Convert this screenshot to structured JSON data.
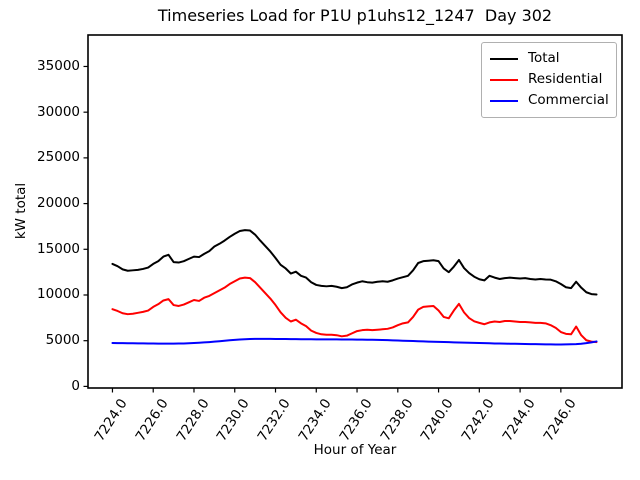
{
  "figure": {
    "background": "#ffffff"
  },
  "chart_data": {
    "type": "line",
    "title": "Timeseries Load for P1U p1uhs12_1247  Day 302",
    "xlabel": "Hour of Year",
    "ylabel": "kW total",
    "grid": false,
    "legend_position": "upper right",
    "xlim": [
      7222.8,
      7249.0
    ],
    "ylim": [
      -175,
      38443
    ],
    "x_tick_values": [
      7224,
      7226,
      7228,
      7230,
      7232,
      7234,
      7236,
      7238,
      7240,
      7242,
      7244,
      7246
    ],
    "x_tick_labels": [
      "7224.0",
      "7226.0",
      "7228.0",
      "7230.0",
      "7232.0",
      "7234.0",
      "7236.0",
      "7238.0",
      "7240.0",
      "7242.0",
      "7244.0",
      "7246.0"
    ],
    "y_tick_values": [
      0,
      5000,
      10000,
      15000,
      20000,
      25000,
      30000,
      35000
    ],
    "y_tick_labels": [
      "0",
      "5000",
      "10000",
      "15000",
      "20000",
      "25000",
      "30000",
      "35000"
    ],
    "x_start": 7224.0,
    "x_step": 0.25,
    "series": [
      {
        "name": "Total",
        "color": "#000000",
        "values": [
          13400,
          13150,
          12800,
          12650,
          12700,
          12750,
          12850,
          13000,
          13400,
          13700,
          14200,
          14400,
          13600,
          13550,
          13700,
          13950,
          14200,
          14150,
          14500,
          14800,
          15300,
          15600,
          15950,
          16350,
          16700,
          17000,
          17100,
          17050,
          16600,
          15950,
          15350,
          14750,
          14050,
          13300,
          12900,
          12350,
          12550,
          12100,
          11900,
          11400,
          11100,
          11000,
          10950,
          11000,
          10900,
          10750,
          10850,
          11150,
          11350,
          11500,
          11400,
          11350,
          11450,
          11500,
          11450,
          11600,
          11800,
          11950,
          12100,
          12700,
          13500,
          13700,
          13750,
          13800,
          13700,
          12900,
          12500,
          13100,
          13830,
          12950,
          12400,
          12000,
          11720,
          11600,
          12100,
          11900,
          11750,
          11850,
          11900,
          11850,
          11800,
          11850,
          11750,
          11700,
          11750,
          11700,
          11680,
          11500,
          11200,
          10850,
          10750,
          11450,
          10800,
          10300,
          10100,
          10050
        ]
      },
      {
        "name": "Residential",
        "color": "#ff0000",
        "values": [
          8450,
          8250,
          8000,
          7900,
          7950,
          8050,
          8150,
          8300,
          8700,
          9000,
          9400,
          9550,
          8900,
          8800,
          8950,
          9200,
          9450,
          9350,
          9700,
          9900,
          10200,
          10500,
          10800,
          11200,
          11500,
          11800,
          11900,
          11850,
          11400,
          10800,
          10200,
          9600,
          8900,
          8100,
          7500,
          7100,
          7300,
          6900,
          6600,
          6100,
          5850,
          5700,
          5650,
          5650,
          5600,
          5480,
          5550,
          5800,
          6050,
          6150,
          6200,
          6150,
          6200,
          6250,
          6300,
          6450,
          6700,
          6900,
          7000,
          7600,
          8400,
          8700,
          8750,
          8800,
          8300,
          7600,
          7450,
          8300,
          9030,
          8100,
          7480,
          7120,
          6950,
          6800,
          7000,
          7100,
          7050,
          7150,
          7150,
          7100,
          7050,
          7050,
          7000,
          6950,
          6950,
          6900,
          6700,
          6400,
          5950,
          5750,
          5700,
          6550,
          5600,
          5050,
          4900,
          4850
        ]
      },
      {
        "name": "Commercial",
        "color": "#0000ff",
        "values": [
          4750,
          4740,
          4730,
          4720,
          4715,
          4710,
          4705,
          4700,
          4690,
          4685,
          4680,
          4680,
          4685,
          4690,
          4700,
          4720,
          4745,
          4775,
          4810,
          4850,
          4895,
          4945,
          4995,
          5045,
          5090,
          5130,
          5160,
          5185,
          5200,
          5205,
          5200,
          5195,
          5190,
          5185,
          5180,
          5175,
          5170,
          5165,
          5160,
          5155,
          5150,
          5148,
          5145,
          5143,
          5140,
          5135,
          5130,
          5125,
          5120,
          5115,
          5110,
          5100,
          5090,
          5075,
          5060,
          5040,
          5020,
          5000,
          4980,
          4960,
          4940,
          4920,
          4900,
          4885,
          4870,
          4855,
          4840,
          4820,
          4805,
          4790,
          4775,
          4760,
          4745,
          4730,
          4715,
          4700,
          4690,
          4680,
          4670,
          4660,
          4650,
          4640,
          4630,
          4620,
          4610,
          4600,
          4595,
          4590,
          4590,
          4595,
          4605,
          4620,
          4660,
          4730,
          4820,
          4920
        ]
      }
    ]
  }
}
